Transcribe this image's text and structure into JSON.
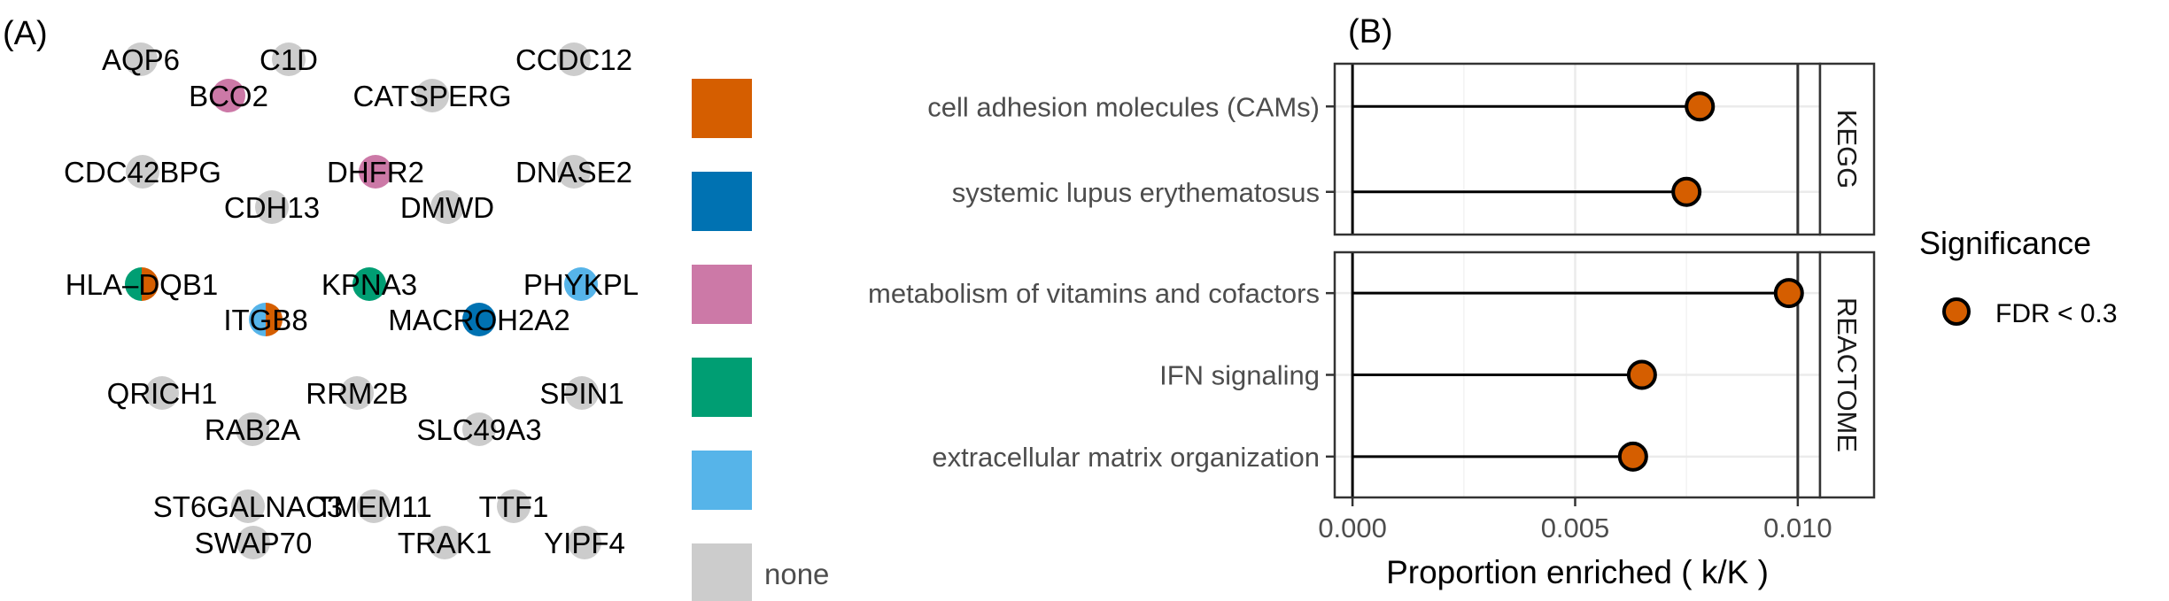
{
  "panel_a": {
    "label": "(A)",
    "genes": [
      {
        "name": "AQP6",
        "colors": [
          "#cccccc"
        ]
      },
      {
        "name": "C1D",
        "colors": [
          "#cccccc"
        ]
      },
      {
        "name": "CCDC12",
        "colors": [
          "#cccccc"
        ]
      },
      {
        "name": "BCO2",
        "colors": [
          "#cc79a7"
        ]
      },
      {
        "name": "CATSPERG",
        "colors": [
          "#cccccc"
        ]
      },
      {
        "name": "CDC42BPG",
        "colors": [
          "#cccccc"
        ]
      },
      {
        "name": "DHFR2",
        "colors": [
          "#cc79a7"
        ]
      },
      {
        "name": "DNASE2",
        "colors": [
          "#cccccc"
        ]
      },
      {
        "name": "CDH13",
        "colors": [
          "#cccccc"
        ]
      },
      {
        "name": "DMWD",
        "colors": [
          "#cccccc"
        ]
      },
      {
        "name": "HLA–DQB1",
        "colors": [
          "#d55e00",
          "#009e73"
        ]
      },
      {
        "name": "KPNA3",
        "colors": [
          "#009e73"
        ]
      },
      {
        "name": "PHYKPL",
        "colors": [
          "#56b4e9"
        ]
      },
      {
        "name": "ITGB8",
        "colors": [
          "#d55e00",
          "#56b4e9"
        ]
      },
      {
        "name": "MACROH2A2",
        "colors": [
          "#0072b2"
        ]
      },
      {
        "name": "QRICH1",
        "colors": [
          "#cccccc"
        ]
      },
      {
        "name": "RRM2B",
        "colors": [
          "#cccccc"
        ]
      },
      {
        "name": "SPIN1",
        "colors": [
          "#cccccc"
        ]
      },
      {
        "name": "RAB2A",
        "colors": [
          "#cccccc"
        ]
      },
      {
        "name": "SLC49A3",
        "colors": [
          "#cccccc"
        ]
      },
      {
        "name": "ST6GALNAC3",
        "colors": [
          "#cccccc"
        ]
      },
      {
        "name": "TMEM11",
        "colors": [
          "#cccccc"
        ]
      },
      {
        "name": "TTF1",
        "colors": [
          "#cccccc"
        ]
      },
      {
        "name": "SWAP70",
        "colors": [
          "#cccccc"
        ]
      },
      {
        "name": "TRAK1",
        "colors": [
          "#cccccc"
        ]
      },
      {
        "name": "YIPF4",
        "colors": [
          "#cccccc"
        ]
      }
    ],
    "color_key": [
      {
        "color": "#d55e00",
        "label": ""
      },
      {
        "color": "#0072b2",
        "label": ""
      },
      {
        "color": "#cc79a7",
        "label": ""
      },
      {
        "color": "#009e73",
        "label": ""
      },
      {
        "color": "#56b4e9",
        "label": ""
      },
      {
        "color": "#cccccc",
        "label": "none"
      }
    ]
  },
  "panel_b": {
    "label": "(B)"
  },
  "chart_data": {
    "type": "lollipop",
    "xlabel": "Proportion enriched ( k/K )",
    "xlim": [
      -0.0004,
      0.0105
    ],
    "x_ticks": [
      0.0,
      0.005,
      0.01
    ],
    "x_tick_labels": [
      "0.000",
      "0.005",
      "0.010"
    ],
    "grid": true,
    "facets": [
      {
        "name": "KEGG",
        "categories": [
          "cell adhesion molecules (CAMs)",
          "systemic lupus erythematosus"
        ],
        "values": [
          0.0078,
          0.0075
        ]
      },
      {
        "name": "REACTOME",
        "categories": [
          "metabolism of vitamins and cofactors",
          "IFN signaling",
          "extracellular matrix organization"
        ],
        "values": [
          0.0098,
          0.0065,
          0.0063
        ]
      }
    ],
    "point_color": "#d55e00",
    "legend": {
      "title": "Significance",
      "entries": [
        {
          "label": "FDR < 0.3",
          "color": "#d55e00"
        }
      ],
      "placement": "right"
    }
  }
}
